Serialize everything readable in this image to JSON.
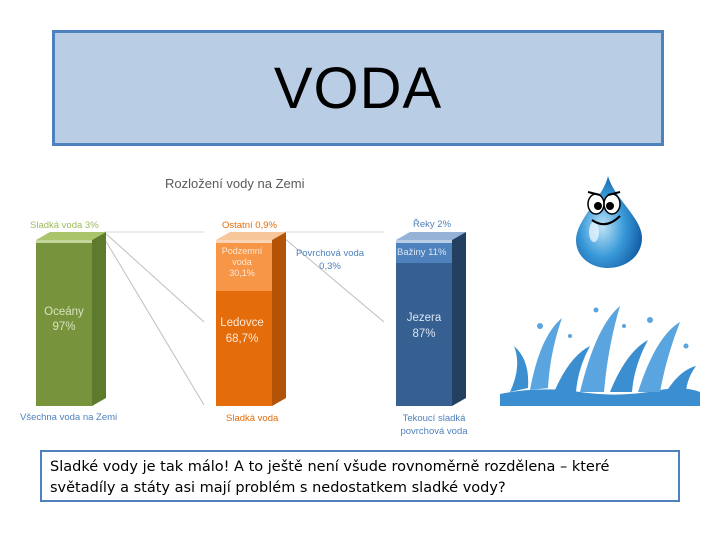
{
  "title": "VODA",
  "chart": {
    "title": "Rozložení vody na Zemi",
    "bar1": {
      "top_label": "Sladká voda 3%",
      "main_label_line1": "Oceány",
      "main_label_line2": "97%",
      "bottom_label": "Všechna voda na Zemi"
    },
    "bar2": {
      "top_label": "Ostatní 0,9%",
      "seg_top_line1": "Podzemní",
      "seg_top_line2": "voda",
      "seg_top_line3": "30,1%",
      "main_label_line1": "Ledovce",
      "main_label_line2": "68,7%",
      "bottom_label": "Sladká voda"
    },
    "middle_note_line1": "Povrchová voda",
    "middle_note_line2": "0,3%",
    "bar3": {
      "top_label": "Řeky 2%",
      "seg_top_label": "Bažiny 11%",
      "main_label_line1": "Jezera",
      "main_label_line2": "87%",
      "bottom_label_line1": "Tekoucí sladká",
      "bottom_label_line2": "povrchová voda"
    },
    "colors": {
      "green": "#77933c",
      "orange": "#e46c0a",
      "blue": "#376092",
      "label_green": "#9bbb59",
      "label_orange": "#e46c0a",
      "label_blue": "#4f81bd"
    }
  },
  "caption": {
    "line1": "Sladké vody je tak málo! A to ještě není všude rovnoměrně rozdělena – které",
    "line2": "světadíly a státy asi mají problém s nedostatkem sladké vody?"
  },
  "icons": {
    "drop": "water-drop-mascot-icon",
    "splash": "water-splash-icon"
  }
}
